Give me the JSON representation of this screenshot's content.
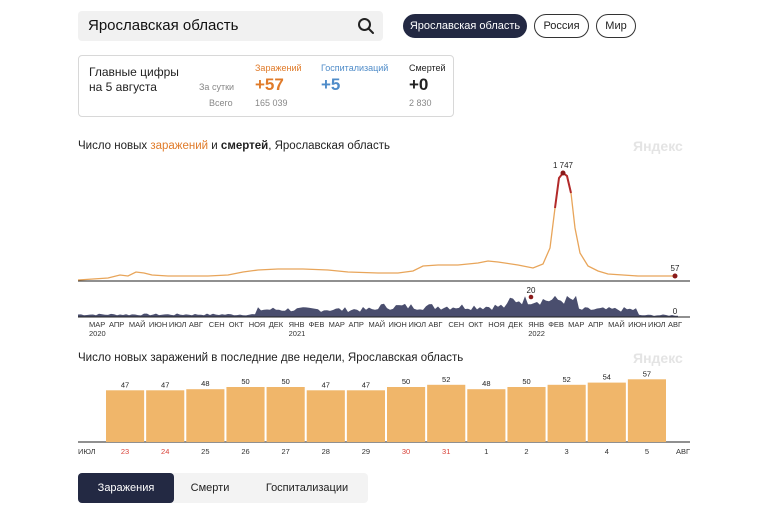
{
  "search": {
    "value": "Ярославская область"
  },
  "regions": [
    "Ярославская область",
    "Россия",
    "Мир"
  ],
  "stats": {
    "heading_line1": "Главные цифры",
    "heading_line2": "на 5 августа",
    "per_day_label": "За сутки",
    "total_label": "Всего",
    "infections": {
      "label": "Заражений",
      "per_day": "+57",
      "total": "165 039",
      "color": "#e07b2a"
    },
    "hospitalizations": {
      "label": "Госпитализаций",
      "per_day": "+5",
      "color": "#4f8cc9"
    },
    "deaths": {
      "label": "Смертей",
      "per_day": "+0",
      "total": "2 830"
    }
  },
  "line_chart": {
    "title_prefix": "Число новых ",
    "title_infections": "заражений",
    "title_and": " и ",
    "title_deaths": "смертей",
    "title_suffix": ", Ярославская область",
    "watermark": "Яндекс",
    "peak_label": "1 747",
    "last_label": "57",
    "deaths_peak_label": "20",
    "deaths_last_label": "0",
    "year_labels": [
      "2020",
      "2021",
      "2022"
    ],
    "month_labels": [
      "МАР",
      "АПР",
      "МАЙ",
      "ИЮН",
      "ИЮЛ",
      "АВГ",
      "СЕН",
      "ОКТ",
      "НОЯ",
      "ДЕК",
      "ЯНВ",
      "ФЕВ",
      "МАР",
      "АПР",
      "МАЙ",
      "ИЮН",
      "ИЮЛ",
      "АВГ",
      "СЕН",
      "ОКТ",
      "НОЯ",
      "ДЕК",
      "ЯНВ",
      "ФЕВ",
      "МАР",
      "АПР",
      "МАЙ",
      "ИЮН",
      "ИЮЛ",
      "АВГ"
    ]
  },
  "chart_data": {
    "type": "bar",
    "title": "Число новых заражений в последние две недели, Ярославская область",
    "categories": [
      "23",
      "24",
      "25",
      "26",
      "27",
      "28",
      "29",
      "30",
      "31",
      "1",
      "2",
      "3",
      "4",
      "5"
    ],
    "values": [
      47,
      47,
      48,
      50,
      50,
      47,
      47,
      50,
      52,
      48,
      50,
      52,
      54,
      57
    ],
    "month_start": "ИЮЛ",
    "month_end": "АВГ",
    "weekend_categories": [
      "23",
      "24",
      "30",
      "31"
    ],
    "bar_color": "#f0b66a",
    "weekend_color": "#d9443a",
    "watermark": "Яндекс"
  },
  "tabs": [
    "Заражения",
    "Смерти",
    "Госпитализации"
  ]
}
